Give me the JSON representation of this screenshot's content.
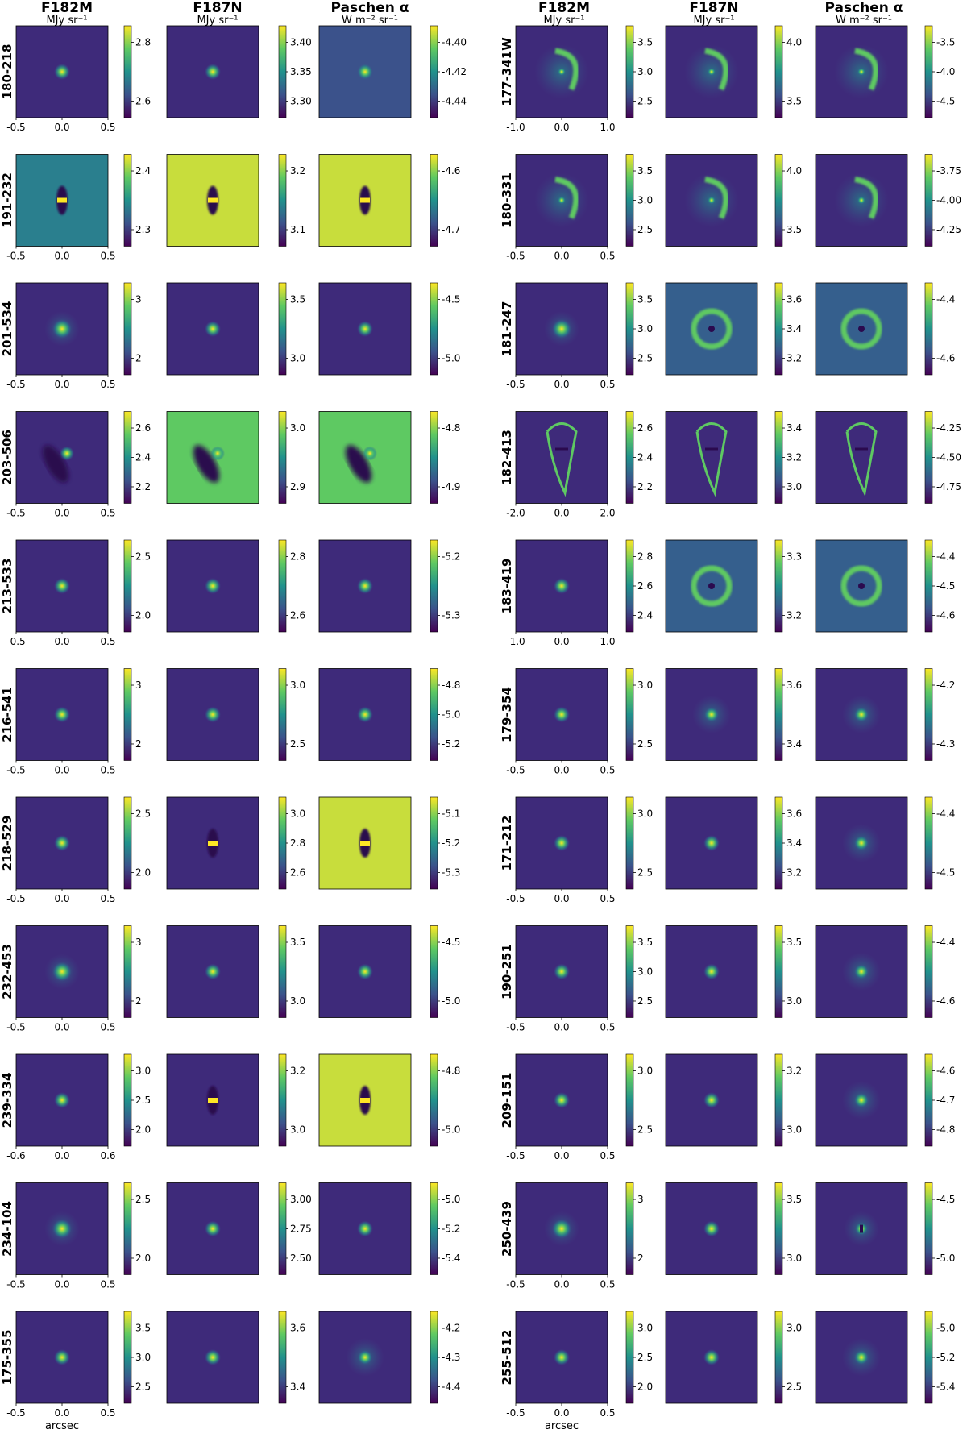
{
  "columns": [
    {
      "title": "F182M",
      "unit": "MJy sr⁻¹"
    },
    {
      "title": "F187N",
      "unit": "MJy sr⁻¹"
    },
    {
      "title": "Paschen α",
      "unit": "W m⁻² sr⁻¹"
    },
    {
      "title": "F182M",
      "unit": "MJy sr⁻¹"
    },
    {
      "title": "F187N",
      "unit": "MJy sr⁻¹"
    },
    {
      "title": "Paschen α",
      "unit": "W m⁻² sr⁻¹"
    }
  ],
  "x_axis_label": "arcsec",
  "colormap": [
    "#440154",
    "#3b528b",
    "#21918c",
    "#5ec962",
    "#fde725"
  ],
  "rows": [
    {
      "label": "180-218",
      "xticks": [
        "-0.5",
        "0.0",
        "0.5"
      ],
      "cb": [
        [
          "2.6",
          "2.8"
        ],
        [
          "3.30",
          "3.35",
          "3.40"
        ],
        [
          "-4.44",
          "-4.42",
          "-4.40"
        ]
      ],
      "style": [
        "pt",
        "ptn",
        "ptb"
      ]
    },
    {
      "label": "191-232",
      "xticks": [
        "-0.5",
        "0.0",
        "0.5"
      ],
      "cb": [
        [
          "2.3",
          "2.4"
        ],
        [
          "3.1",
          "3.2"
        ],
        [
          "-4.7",
          "-4.6"
        ]
      ],
      "style": [
        "dip",
        "brightdip",
        "brightdip"
      ]
    },
    {
      "label": "201-534",
      "xticks": [
        "-0.5",
        "0.0",
        "0.5"
      ],
      "cb": [
        [
          "2",
          "3"
        ],
        [
          "3.0",
          "3.5"
        ],
        [
          "-5.0",
          "-4.5"
        ]
      ],
      "style": [
        "psf",
        "pt",
        "pt"
      ]
    },
    {
      "label": "203-506",
      "xticks": [
        "-0.5",
        "0.0",
        "0.5"
      ],
      "cb": [
        [
          "2.2",
          "2.4",
          "2.6"
        ],
        [
          "2.9",
          "3.0"
        ],
        [
          "-4.9",
          "-4.8"
        ]
      ],
      "style": [
        "lobe",
        "lobe2",
        "lobe2"
      ]
    },
    {
      "label": "213-533",
      "xticks": [
        "-0.5",
        "0.0",
        "0.5"
      ],
      "cb": [
        [
          "2.0",
          "2.5"
        ],
        [
          "2.6",
          "2.8"
        ],
        [
          "-5.3",
          "-5.2"
        ]
      ],
      "style": [
        "pt",
        "ptn",
        "ptn"
      ]
    },
    {
      "label": "216-541",
      "xticks": [
        "-0.5",
        "0.0",
        "0.5"
      ],
      "cb": [
        [
          "2",
          "3"
        ],
        [
          "2.5",
          "3.0"
        ],
        [
          "-5.2",
          "-5.0",
          "-4.8"
        ]
      ],
      "style": [
        "pt",
        "ptn",
        "ptn"
      ]
    },
    {
      "label": "218-529",
      "xticks": [
        "-0.5",
        "0.0",
        "0.5"
      ],
      "cb": [
        [
          "2.0",
          "2.5"
        ],
        [
          "2.6",
          "2.8",
          "3.0"
        ],
        [
          "-5.3",
          "-5.2",
          "-5.1"
        ]
      ],
      "style": [
        "pt",
        "dip",
        "brightdip"
      ]
    },
    {
      "label": "232-453",
      "xticks": [
        "-0.5",
        "0.0",
        "0.5"
      ],
      "cb": [
        [
          "2",
          "3"
        ],
        [
          "3.0",
          "3.5"
        ],
        [
          "-5.0",
          "-4.5"
        ]
      ],
      "style": [
        "psf",
        "pt",
        "pt"
      ]
    },
    {
      "label": "239-334",
      "xticks": [
        "-0.6",
        "0.0",
        "0.6"
      ],
      "cb": [
        [
          "2.0",
          "2.5",
          "3.0"
        ],
        [
          "3.0",
          "3.2"
        ],
        [
          "-5.0",
          "-4.8"
        ]
      ],
      "style": [
        "ptn",
        "dip",
        "brightdip"
      ]
    },
    {
      "label": "234-104",
      "xticks": [
        "-0.5",
        "0.0",
        "0.5"
      ],
      "cb": [
        [
          "2.0",
          "2.5"
        ],
        [
          "2.50",
          "2.75",
          "3.00"
        ],
        [
          "-5.4",
          "-5.2",
          "-5.0"
        ]
      ],
      "style": [
        "psf",
        "ptn",
        "ptn"
      ]
    },
    {
      "label": "175-355",
      "xticks": [
        "-0.5",
        "0.0",
        "0.5"
      ],
      "cb": [
        [
          "2.5",
          "3.0",
          "3.5"
        ],
        [
          "3.4",
          "3.6"
        ],
        [
          "-4.4",
          "-4.3",
          "-4.2"
        ]
      ],
      "style": [
        "pt",
        "pt",
        "halo"
      ]
    }
  ],
  "rows_right": [
    {
      "label": "177-341W",
      "xticks": [
        "-1.0",
        "0.0",
        "1.0"
      ],
      "cb": [
        [
          "2.5",
          "3.0",
          "3.5"
        ],
        [
          "3.5",
          "4.0"
        ],
        [
          "-4.5",
          "-4.0",
          "-3.5"
        ]
      ],
      "style": [
        "arc",
        "arc",
        "arc"
      ]
    },
    {
      "label": "180-331",
      "xticks": [
        "-0.5",
        "0.0",
        "0.5"
      ],
      "cb": [
        [
          "2.5",
          "3.0",
          "3.5"
        ],
        [
          "3.5",
          "4.0"
        ],
        [
          "-4.25",
          "-4.00",
          "-3.75"
        ]
      ],
      "style": [
        "arc2",
        "arc2",
        "arc2"
      ]
    },
    {
      "label": "181-247",
      "xticks": [
        "-0.5",
        "0.0",
        "0.5"
      ],
      "cb": [
        [
          "2.5",
          "3.0",
          "3.5"
        ],
        [
          "3.2",
          "3.4",
          "3.6"
        ],
        [
          "-4.6",
          "-4.4"
        ]
      ],
      "style": [
        "psf",
        "ring",
        "ring"
      ]
    },
    {
      "label": "182-413",
      "xticks": [
        "-2.0",
        "0.0",
        "2.0"
      ],
      "cb": [
        [
          "2.2",
          "2.4",
          "2.6"
        ],
        [
          "3.0",
          "3.2",
          "3.4"
        ],
        [
          "-4.75",
          "-4.50",
          "-4.25"
        ]
      ],
      "style": [
        "tear",
        "tear",
        "tear"
      ]
    },
    {
      "label": "183-419",
      "xticks": [
        "-1.0",
        "0.0",
        "1.0"
      ],
      "cb": [
        [
          "2.4",
          "2.6",
          "2.8"
        ],
        [
          "3.2",
          "3.3"
        ],
        [
          "-4.6",
          "-4.5",
          "-4.4"
        ]
      ],
      "style": [
        "pt",
        "ring2",
        "ring2"
      ]
    },
    {
      "label": "179-354",
      "xticks": [
        "-0.5",
        "0.0",
        "0.5"
      ],
      "cb": [
        [
          "2.5",
          "3.0"
        ],
        [
          "3.4",
          "3.6"
        ],
        [
          "-4.3",
          "-4.2"
        ]
      ],
      "style": [
        "pt",
        "halo",
        "halo"
      ]
    },
    {
      "label": "171-212",
      "xticks": [
        "-0.5",
        "0.0",
        "0.5"
      ],
      "cb": [
        [
          "2.5",
          "3.0"
        ],
        [
          "3.2",
          "3.4",
          "3.6"
        ],
        [
          "-4.5",
          "-4.4"
        ]
      ],
      "style": [
        "pt",
        "pt",
        "halo"
      ]
    },
    {
      "label": "190-251",
      "xticks": [
        "-0.5",
        "0.0",
        "0.5"
      ],
      "cb": [
        [
          "2.5",
          "3.0",
          "3.5"
        ],
        [
          "3.0",
          "3.5"
        ],
        [
          "-4.6",
          "-4.4"
        ]
      ],
      "style": [
        "pt",
        "pt",
        "halo"
      ]
    },
    {
      "label": "209-151",
      "xticks": [
        "-0.5",
        "0.0",
        "0.5"
      ],
      "cb": [
        [
          "2.5",
          "3.0"
        ],
        [
          "3.0",
          "3.2"
        ],
        [
          "-4.8",
          "-4.7",
          "-4.6"
        ]
      ],
      "style": [
        "pt",
        "ptn",
        "halo"
      ]
    },
    {
      "label": "250-439",
      "xticks": [
        "-0.5",
        "0.0",
        "0.5"
      ],
      "cb": [
        [
          "2",
          "3"
        ],
        [
          "3.0",
          "3.5"
        ],
        [
          "-5.0",
          "-4.5"
        ]
      ],
      "style": [
        "psf",
        "pt",
        "dipc"
      ]
    },
    {
      "label": "255-512",
      "xticks": [
        "-0.5",
        "0.0",
        "0.5"
      ],
      "cb": [
        [
          "2.0",
          "2.5",
          "3.0"
        ],
        [
          "2.5",
          "3.0"
        ],
        [
          "-5.4",
          "-5.2",
          "-5.0"
        ]
      ],
      "style": [
        "pt",
        "ptn",
        "halo"
      ]
    }
  ]
}
